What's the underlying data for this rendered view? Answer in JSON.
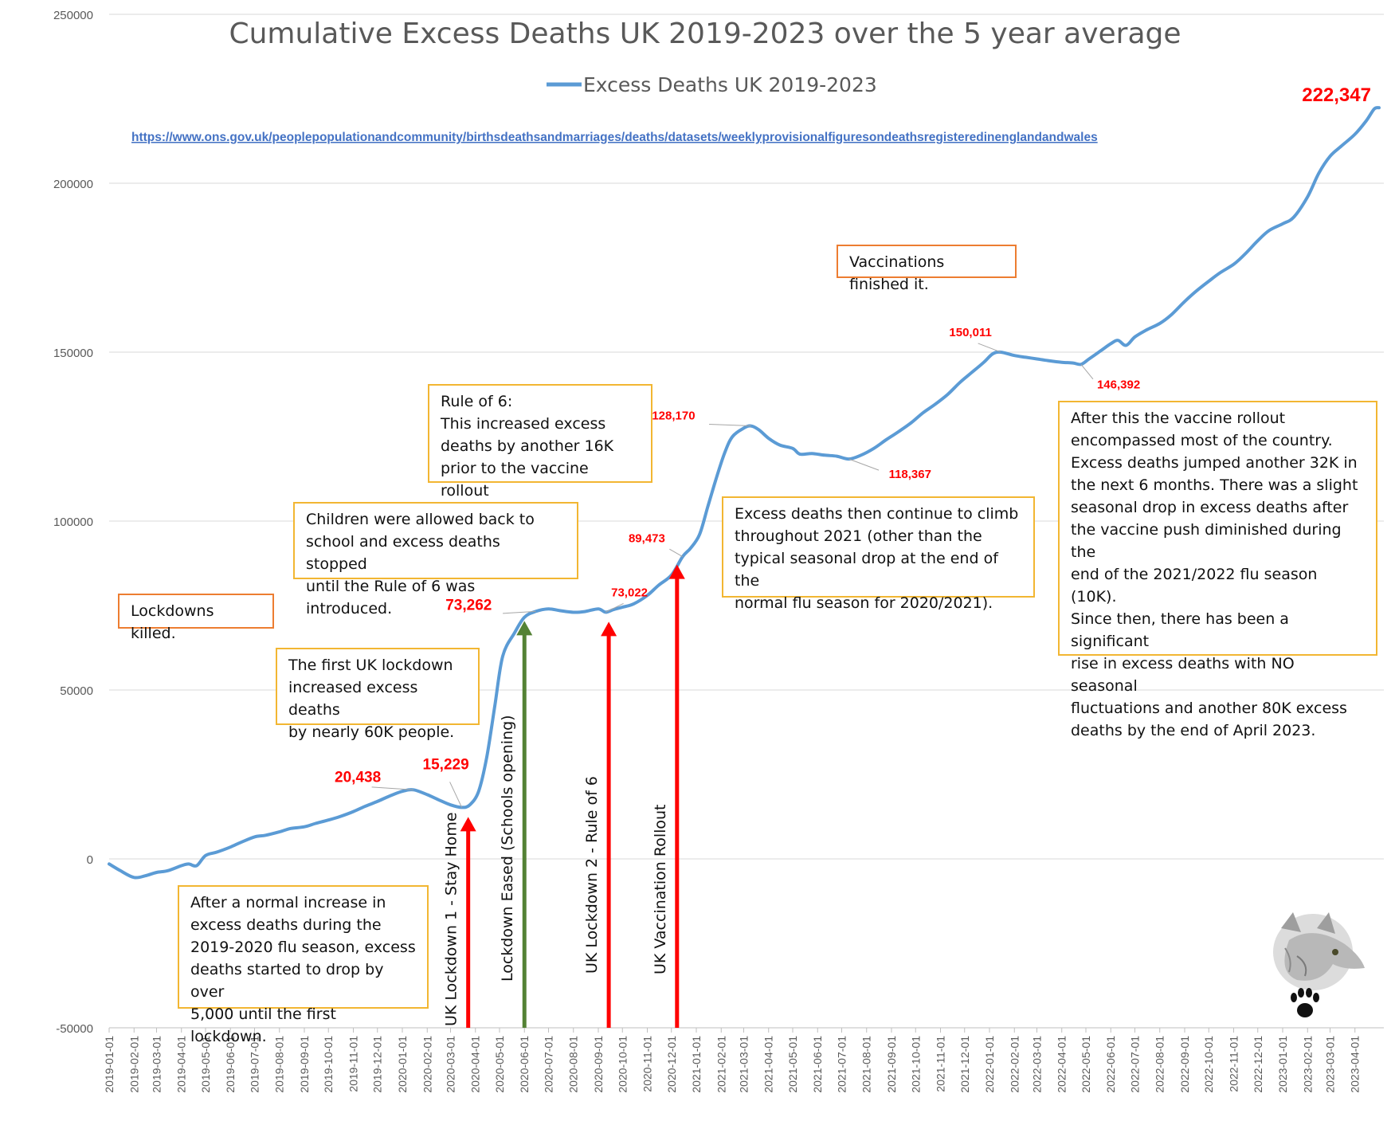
{
  "chart_data": {
    "type": "line",
    "title": "Cumulative Excess Deaths UK 2019-2023 over the 5 year average",
    "source_link": "https://www.ons.gov.uk/peoplepopulationandcommunity/birthsdeathsandmarriages/deaths/datasets/weeklyprovisionalfiguresondeathsregisteredinenglandandwales",
    "legend": {
      "position": "top-center",
      "entries": [
        "Excess Deaths UK 2019-2023"
      ]
    },
    "grid": true,
    "ylim": [
      -50000,
      250000
    ],
    "y_ticks": [
      -50000,
      0,
      50000,
      100000,
      150000,
      200000,
      250000
    ],
    "x_ticks": [
      "2019-01-01",
      "2019-02-01",
      "2019-03-01",
      "2019-04-01",
      "2019-05-01",
      "2019-06-01",
      "2019-07-01",
      "2019-08-01",
      "2019-09-01",
      "2019-10-01",
      "2019-11-01",
      "2019-12-01",
      "2020-01-01",
      "2020-02-01",
      "2020-03-01",
      "2020-04-01",
      "2020-05-01",
      "2020-06-01",
      "2020-07-01",
      "2020-08-01",
      "2020-09-01",
      "2020-10-01",
      "2020-11-01",
      "2020-12-01",
      "2021-01-01",
      "2021-02-01",
      "2021-03-01",
      "2021-04-01",
      "2021-05-01",
      "2021-06-01",
      "2021-07-01",
      "2021-08-01",
      "2021-09-01",
      "2021-10-01",
      "2021-11-01",
      "2021-12-01",
      "2022-01-01",
      "2022-02-01",
      "2022-03-01",
      "2022-04-01",
      "2022-05-01",
      "2022-06-01",
      "2022-07-01",
      "2022-08-01",
      "2022-09-01",
      "2022-10-01",
      "2022-11-01",
      "2022-12-01",
      "2023-01-01",
      "2023-02-01",
      "2023-03-01",
      "2023-04-01"
    ],
    "series": [
      {
        "name": "Excess Deaths UK 2019-2023",
        "color": "#5b9bd5",
        "points": [
          [
            "2019-01-01",
            -1500
          ],
          [
            "2019-01-15",
            -3500
          ],
          [
            "2019-02-01",
            -5500
          ],
          [
            "2019-02-15",
            -5000
          ],
          [
            "2019-03-01",
            -4000
          ],
          [
            "2019-03-15",
            -3500
          ],
          [
            "2019-04-01",
            -2000
          ],
          [
            "2019-04-10",
            -1500
          ],
          [
            "2019-04-20",
            -2000
          ],
          [
            "2019-05-01",
            1000
          ],
          [
            "2019-05-15",
            2000
          ],
          [
            "2019-06-01",
            3500
          ],
          [
            "2019-06-15",
            5000
          ],
          [
            "2019-07-01",
            6500
          ],
          [
            "2019-07-15",
            7000
          ],
          [
            "2019-08-01",
            8000
          ],
          [
            "2019-08-15",
            9000
          ],
          [
            "2019-09-01",
            9500
          ],
          [
            "2019-09-15",
            10500
          ],
          [
            "2019-10-01",
            11500
          ],
          [
            "2019-10-15",
            12500
          ],
          [
            "2019-11-01",
            14000
          ],
          [
            "2019-11-15",
            15500
          ],
          [
            "2019-12-01",
            17000
          ],
          [
            "2019-12-15",
            18500
          ],
          [
            "2020-01-01",
            20000
          ],
          [
            "2020-01-15",
            20438
          ],
          [
            "2020-02-01",
            19000
          ],
          [
            "2020-02-15",
            17500
          ],
          [
            "2020-03-01",
            16000
          ],
          [
            "2020-03-15",
            15229
          ],
          [
            "2020-03-25",
            16000
          ],
          [
            "2020-04-05",
            20000
          ],
          [
            "2020-04-15",
            30000
          ],
          [
            "2020-04-25",
            45000
          ],
          [
            "2020-05-05",
            60000
          ],
          [
            "2020-05-20",
            67000
          ],
          [
            "2020-06-01",
            71500
          ],
          [
            "2020-06-15",
            73262
          ],
          [
            "2020-07-01",
            74000
          ],
          [
            "2020-07-15",
            73500
          ],
          [
            "2020-08-01",
            73000
          ],
          [
            "2020-08-15",
            73200
          ],
          [
            "2020-09-01",
            74000
          ],
          [
            "2020-09-10",
            73022
          ],
          [
            "2020-09-20",
            73800
          ],
          [
            "2020-10-01",
            74500
          ],
          [
            "2020-10-15",
            75500
          ],
          [
            "2020-11-01",
            78000
          ],
          [
            "2020-11-15",
            81000
          ],
          [
            "2020-12-01",
            84000
          ],
          [
            "2020-12-15",
            89473
          ],
          [
            "2020-12-25",
            92000
          ],
          [
            "2021-01-05",
            96000
          ],
          [
            "2021-01-15",
            104000
          ],
          [
            "2021-01-25",
            112000
          ],
          [
            "2021-02-05",
            120000
          ],
          [
            "2021-02-15",
            125000
          ],
          [
            "2021-03-01",
            127500
          ],
          [
            "2021-03-10",
            128170
          ],
          [
            "2021-03-20",
            127000
          ],
          [
            "2021-04-01",
            124500
          ],
          [
            "2021-04-15",
            122500
          ],
          [
            "2021-05-01",
            121500
          ],
          [
            "2021-05-10",
            119800
          ],
          [
            "2021-05-25",
            120000
          ],
          [
            "2021-06-10",
            119500
          ],
          [
            "2021-06-25",
            119200
          ],
          [
            "2021-07-10",
            118367
          ],
          [
            "2021-07-25",
            119500
          ],
          [
            "2021-08-10",
            121500
          ],
          [
            "2021-08-25",
            124000
          ],
          [
            "2021-09-10",
            126500
          ],
          [
            "2021-09-25",
            129000
          ],
          [
            "2021-10-10",
            132000
          ],
          [
            "2021-10-25",
            134500
          ],
          [
            "2021-11-10",
            137500
          ],
          [
            "2021-11-25",
            141000
          ],
          [
            "2021-12-10",
            144000
          ],
          [
            "2021-12-25",
            147000
          ],
          [
            "2022-01-05",
            149500
          ],
          [
            "2022-01-15",
            150011
          ],
          [
            "2022-02-01",
            149000
          ],
          [
            "2022-02-15",
            148500
          ],
          [
            "2022-03-01",
            148000
          ],
          [
            "2022-03-15",
            147500
          ],
          [
            "2022-04-01",
            147000
          ],
          [
            "2022-04-15",
            146800
          ],
          [
            "2022-04-25",
            146392
          ],
          [
            "2022-05-05",
            148000
          ],
          [
            "2022-05-20",
            150500
          ],
          [
            "2022-06-01",
            152500
          ],
          [
            "2022-06-10",
            153500
          ],
          [
            "2022-06-20",
            152000
          ],
          [
            "2022-07-01",
            154500
          ],
          [
            "2022-07-15",
            156500
          ],
          [
            "2022-08-01",
            158500
          ],
          [
            "2022-08-15",
            161000
          ],
          [
            "2022-09-01",
            165000
          ],
          [
            "2022-09-15",
            168000
          ],
          [
            "2022-10-01",
            171000
          ],
          [
            "2022-10-15",
            173500
          ],
          [
            "2022-11-01",
            176000
          ],
          [
            "2022-11-15",
            179000
          ],
          [
            "2022-12-01",
            183000
          ],
          [
            "2022-12-15",
            186000
          ],
          [
            "2023-01-01",
            188000
          ],
          [
            "2023-01-15",
            190000
          ],
          [
            "2023-02-01",
            196000
          ],
          [
            "2023-02-15",
            203000
          ],
          [
            "2023-03-01",
            208000
          ],
          [
            "2023-03-15",
            211000
          ],
          [
            "2023-04-01",
            214500
          ],
          [
            "2023-04-15",
            218500
          ],
          [
            "2023-04-25",
            222000
          ],
          [
            "2023-05-01",
            222347
          ]
        ]
      }
    ],
    "point_labels": [
      {
        "x": "2020-01-15",
        "y": 20438,
        "text": "20,438",
        "size": "large"
      },
      {
        "x": "2020-03-15",
        "y": 15229,
        "text": "15,229",
        "size": "large"
      },
      {
        "x": "2020-06-15",
        "y": 73262,
        "text": "73,262",
        "size": "large"
      },
      {
        "x": "2020-09-10",
        "y": 73022,
        "text": "73,022",
        "size": "small"
      },
      {
        "x": "2020-12-15",
        "y": 89473,
        "text": "89,473",
        "size": "small"
      },
      {
        "x": "2021-03-10",
        "y": 128170,
        "text": "128,170",
        "size": "small"
      },
      {
        "x": "2021-07-10",
        "y": 118367,
        "text": "118,367",
        "size": "small"
      },
      {
        "x": "2022-01-15",
        "y": 150011,
        "text": "150,011",
        "size": "small"
      },
      {
        "x": "2022-04-25",
        "y": 146392,
        "text": "146,392",
        "size": "small"
      },
      {
        "x": "2023-05-01",
        "y": 222347,
        "text": "222,347",
        "size": "xlarge"
      }
    ],
    "event_arrows": [
      {
        "x": "2020-03-23",
        "label": "UK Lockdown 1 - Stay Home",
        "color": "#ff0000"
      },
      {
        "x": "2020-06-01",
        "label": "Lockdown Eased (Schools opening)",
        "color": "#548235"
      },
      {
        "x": "2020-09-14",
        "label": "UK Lockdown 2 - Rule of 6",
        "color": "#ff0000"
      },
      {
        "x": "2020-12-08",
        "label": "UK Vaccination Rollout",
        "color": "#ff0000"
      }
    ]
  },
  "annotations": {
    "after_normal": "After a normal increase in\nexcess deaths during the\n2019-2020 flu season, excess\ndeaths started to drop by over\n5,000 until the first lockdown.",
    "lockdowns_killed": "Lockdowns killed.",
    "first_lockdown": "The first UK lockdown\nincreased excess deaths\nby nearly 60K people.",
    "children_school": "Children were allowed back to\nschool and excess deaths stopped\nuntil the Rule of 6 was introduced.",
    "rule_of_6": "Rule of 6:\nThis increased excess\ndeaths by another 16K\nprior to the vaccine rollout",
    "continue_climb": "Excess deaths then continue to climb\nthroughout 2021 (other than the\ntypical seasonal drop at the end of the\nnormal flu season for 2020/2021).",
    "vaccinations_finished": "Vaccinations finished it.",
    "after_rollout": "After this the vaccine rollout\nencompassed most of the country.\nExcess deaths jumped another 32K in\nthe next 6 months. There was a slight\nseasonal drop in excess deaths after\nthe vaccine push diminished during the\nend of the 2021/2022 flu season (10K).\nSince then, there has been a significant\nrise in excess deaths with NO seasonal\nfluctuations and another 80K excess\ndeaths by the end of April 2023."
  },
  "logo": {
    "icon": "wolf-paw-logo"
  }
}
